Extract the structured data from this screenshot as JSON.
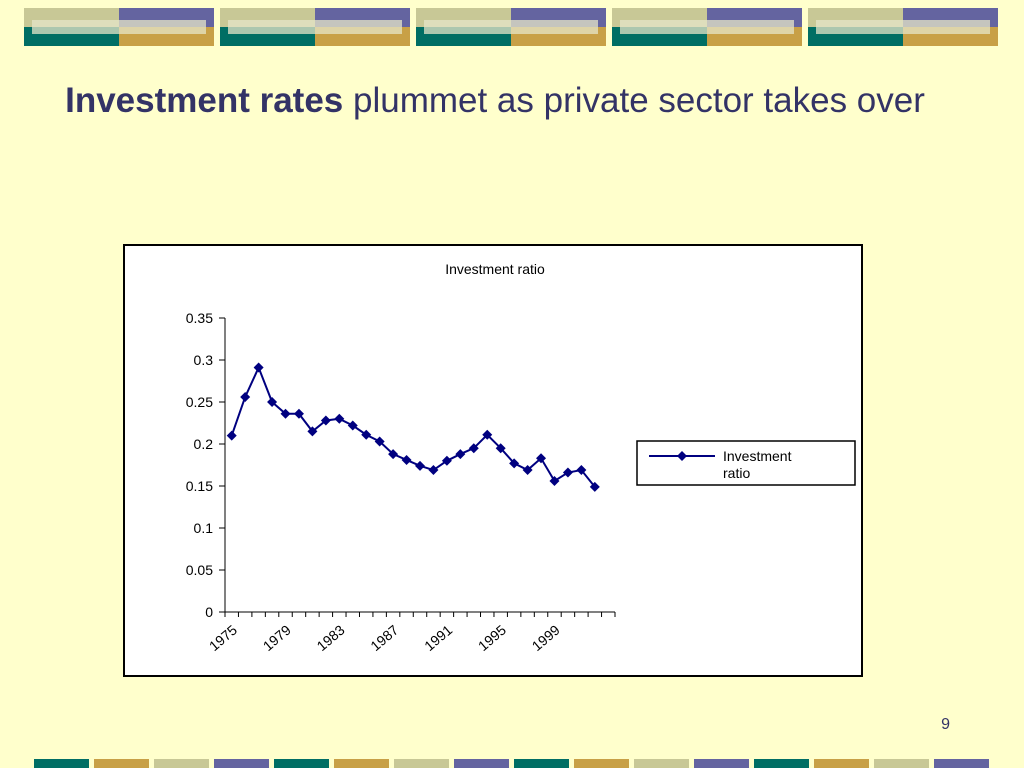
{
  "slide": {
    "title_bold": "Investment rates",
    "title_rest": " plummet as private sector takes over",
    "page_number": "9"
  },
  "colors": {
    "background": "#ffffcc",
    "title": "#333366",
    "series": "#000080",
    "deco_olive": "#c8c896",
    "deco_purple": "#6464a0",
    "deco_teal": "#006e64",
    "deco_gold": "#c8a046",
    "deco_light": "#e6e6c8"
  },
  "chart_data": {
    "type": "line",
    "title": "Investment ratio",
    "xlabel": "",
    "ylabel": "",
    "x": [
      1975,
      1976,
      1977,
      1978,
      1979,
      1980,
      1981,
      1982,
      1983,
      1984,
      1985,
      1986,
      1987,
      1988,
      1989,
      1990,
      1991,
      1992,
      1993,
      1994,
      1995,
      1996,
      1997,
      1998,
      1999,
      2000,
      2001,
      2002,
      2003
    ],
    "x_tick_labels": [
      "1975",
      "1979",
      "1983",
      "1987",
      "1991",
      "1995",
      "1999"
    ],
    "ylim": [
      0,
      0.35
    ],
    "y_ticks": [
      "0",
      "0.05",
      "0.1",
      "0.15",
      "0.2",
      "0.25",
      "0.3",
      "0.35"
    ],
    "series": [
      {
        "name": "Investment ratio",
        "marker": "diamond",
        "values": [
          0.21,
          0.256,
          0.291,
          0.25,
          0.236,
          0.236,
          0.215,
          0.228,
          0.23,
          0.222,
          0.211,
          0.203,
          0.188,
          0.181,
          0.174,
          0.169,
          0.18,
          0.188,
          0.195,
          0.211,
          0.195,
          0.177,
          0.169,
          0.183,
          0.156,
          0.166,
          0.169,
          0.149,
          null
        ]
      }
    ],
    "legend": {
      "position": "right",
      "label": "Investment ratio"
    },
    "grid": false
  }
}
